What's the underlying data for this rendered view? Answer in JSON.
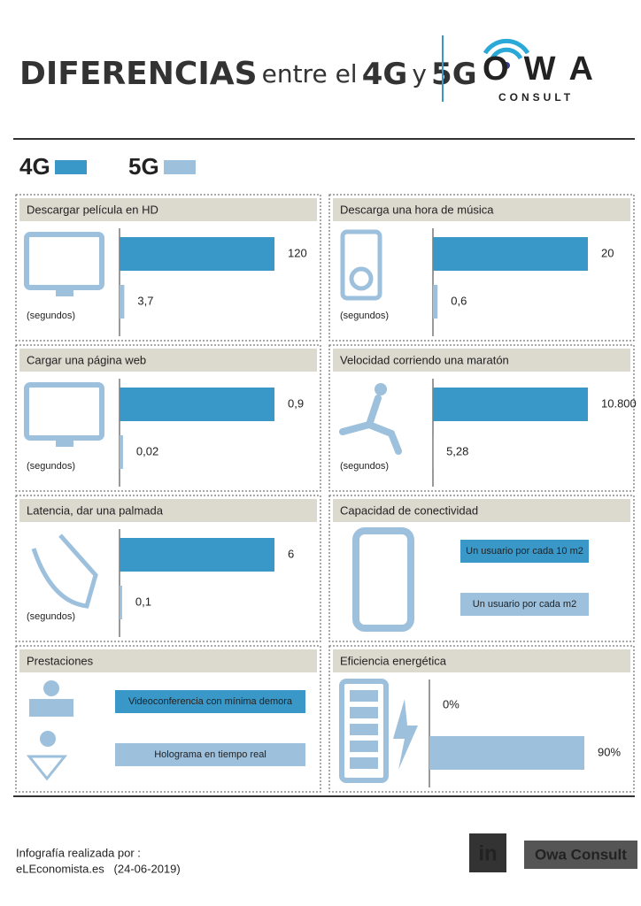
{
  "header": {
    "title_bold": "DIFERENCIAS",
    "title_mid": "entre el",
    "title_4g": "4G",
    "title_y": "y",
    "title_5g": "5G",
    "logo_name": "OWA",
    "logo_sub": "CONSULT"
  },
  "legend": [
    {
      "name": "4G",
      "color": "#3a98c8"
    },
    {
      "name": "5G",
      "color": "#9dc0dd"
    }
  ],
  "chart_data": [
    {
      "type": "bar",
      "title": "Descargar película en HD",
      "unit": "(segundos)",
      "values": [
        120,
        3.7
      ],
      "value_labels": [
        "120",
        "3,7"
      ],
      "colors": [
        "#3a98c8",
        "#9dc0dd"
      ]
    },
    {
      "type": "bar",
      "title": "Descarga una hora de música",
      "unit": "(segundos)",
      "values": [
        20,
        0.6
      ],
      "value_labels": [
        "20",
        "0,6"
      ],
      "colors": [
        "#3a98c8",
        "#9dc0dd"
      ]
    },
    {
      "type": "bar",
      "title": "Cargar una página web",
      "unit": "(segundos)",
      "values": [
        0.9,
        0.02
      ],
      "value_labels": [
        "0,9",
        "0,02"
      ],
      "colors": [
        "#3a98c8",
        "#9dc0dd"
      ]
    },
    {
      "type": "bar",
      "title": "Velocidad corriendo una maratón",
      "unit": "(segundos)",
      "values": [
        10800,
        5.28
      ],
      "value_labels": [
        "10.800",
        "5,28"
      ],
      "colors": [
        "#3a98c8",
        "#9dc0dd"
      ]
    },
    {
      "type": "bar",
      "title": "Latencia, dar una palmada",
      "unit": "(segundos)",
      "values": [
        6,
        0.1
      ],
      "value_labels": [
        "6",
        "0,1"
      ],
      "colors": [
        "#3a98c8",
        "#9dc0dd"
      ]
    },
    {
      "type": "bar",
      "title": "Eficiencia energética",
      "values": [
        0,
        90
      ],
      "value_labels": [
        "0%",
        "90%"
      ],
      "colors": [
        "#3a98c8",
        "#9dc0dd"
      ]
    }
  ],
  "panels": [
    {
      "title": "Capacidad de conectividad",
      "items": [
        {
          "label": "Un usuario por cada 10 m2",
          "color": "#3a98c8"
        },
        {
          "label": "Un usuario por cada  m2",
          "color": "#9dc0dd"
        }
      ]
    },
    {
      "title": "Prestaciones",
      "items": [
        {
          "label": "Videoconferencia con mínima demora",
          "color": "#3a98c8"
        },
        {
          "label": "Holograma en tiempo real",
          "color": "#9dc0dd"
        }
      ]
    }
  ],
  "footer": {
    "credit_line1": "Infografía realizada por :",
    "credit_line2": "eLEconomista.es   (24-06-2019)",
    "linkedin": "in",
    "brand": "Owa Consult"
  }
}
